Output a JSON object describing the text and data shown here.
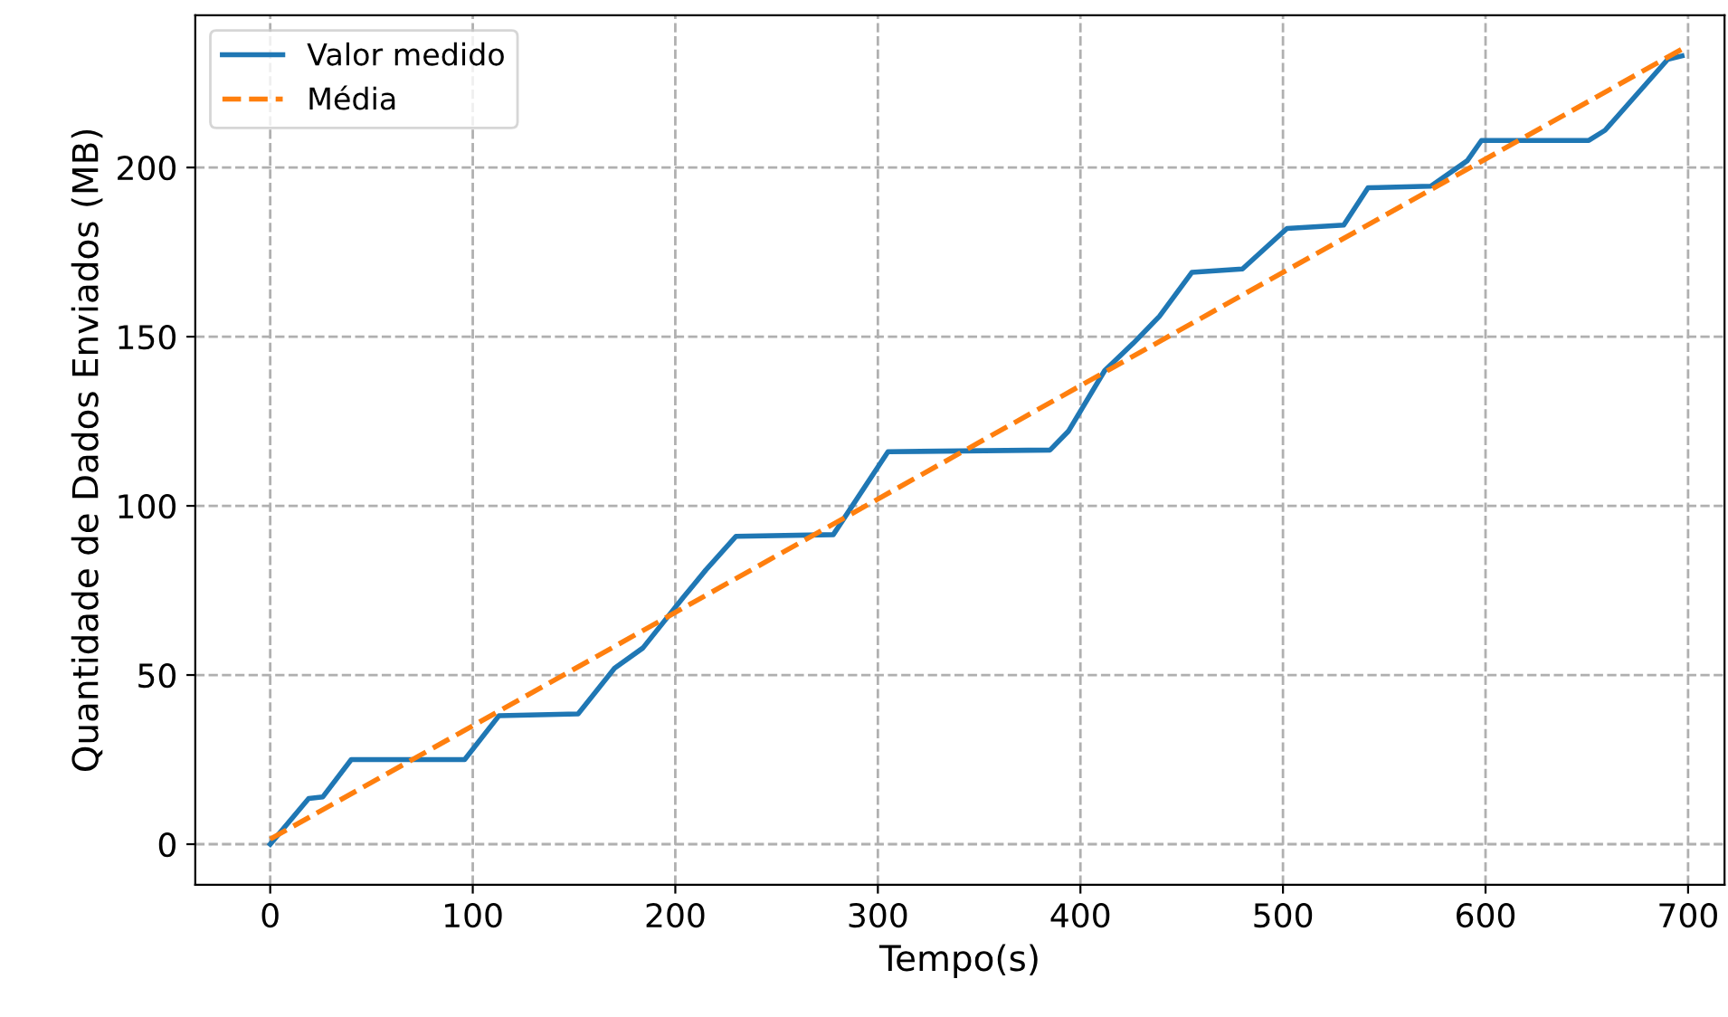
{
  "chart_data": {
    "type": "line",
    "xlabel": "Tempo(s)",
    "ylabel": "Quantidade de Dados Enviados (MB)",
    "xlim": [
      -37,
      718
    ],
    "ylim": [
      -12,
      245
    ],
    "xticks": [
      0,
      100,
      200,
      300,
      400,
      500,
      600,
      700
    ],
    "yticks": [
      0,
      50,
      100,
      150,
      200
    ],
    "grid": true,
    "legend": "top left",
    "series": [
      {
        "name": "Valor medido",
        "color": "#1f77b4",
        "line_style": "solid",
        "x": [
          0,
          19,
          26,
          40,
          96,
          113,
          152,
          170,
          184,
          204,
          215,
          230,
          278,
          305,
          385,
          394,
          412,
          426,
          439,
          455,
          480,
          502,
          530,
          542,
          573,
          591,
          598,
          651,
          659,
          690,
          697
        ],
        "values": [
          0,
          13.5,
          14,
          25,
          25,
          38,
          38.5,
          52,
          58,
          73,
          81,
          91,
          91.5,
          116,
          116.5,
          122,
          140,
          148,
          156,
          169,
          170,
          182,
          183,
          194,
          194.5,
          202,
          208,
          208,
          211,
          232,
          233
        ]
      },
      {
        "name": "Média",
        "color": "#ff7f0e",
        "line_style": "dashed",
        "x": [
          0,
          697
        ],
        "values": [
          1.5,
          235
        ]
      }
    ]
  }
}
